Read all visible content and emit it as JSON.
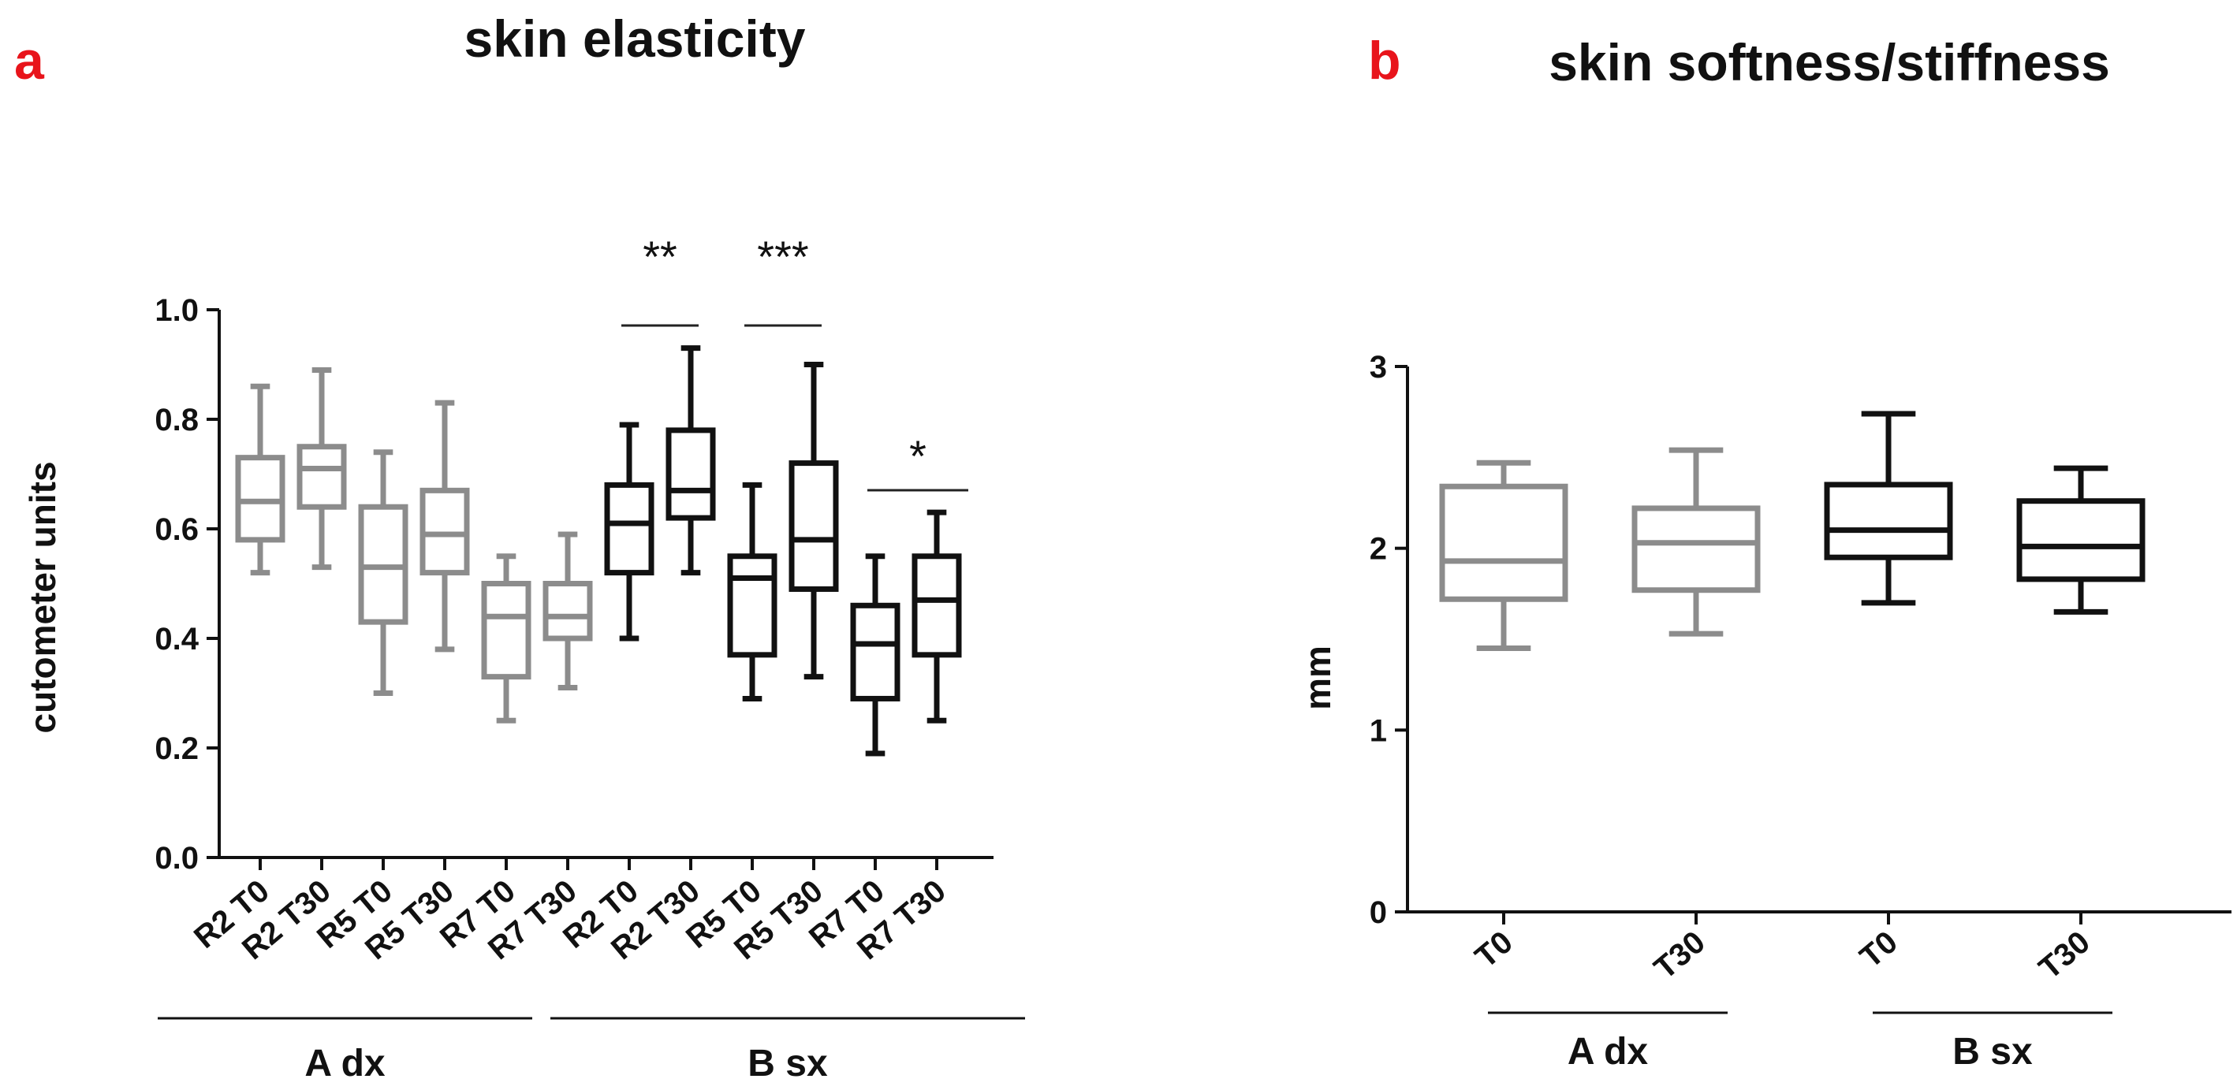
{
  "chart_data": [
    {
      "panel": "a",
      "type": "box",
      "title": "skin elasticity",
      "ylabel": "cutometer units",
      "ylim": [
        0.0,
        1.0
      ],
      "yticks": [
        "0.0",
        "0.2",
        "0.4",
        "0.6",
        "0.8",
        "1.0"
      ],
      "categories": [
        "R2 T0",
        "R2 T30",
        "R5 T0",
        "R5 T30",
        "R7 T0",
        "R7 T30",
        "R2 T0",
        "R2 T30",
        "R5 T0",
        "R5 T30",
        "R7 T0",
        "R7 T30"
      ],
      "groups": [
        {
          "label": "A dx",
          "from": 0,
          "to": 5,
          "color": "#8c8c8c"
        },
        {
          "label": "B sx",
          "from": 6,
          "to": 11,
          "color": "#111111"
        }
      ],
      "boxes": [
        {
          "min": 0.52,
          "q1": 0.58,
          "median": 0.65,
          "q3": 0.73,
          "max": 0.86
        },
        {
          "min": 0.53,
          "q1": 0.64,
          "median": 0.71,
          "q3": 0.75,
          "max": 0.89
        },
        {
          "min": 0.3,
          "q1": 0.43,
          "median": 0.53,
          "q3": 0.64,
          "max": 0.74
        },
        {
          "min": 0.38,
          "q1": 0.52,
          "median": 0.59,
          "q3": 0.67,
          "max": 0.83
        },
        {
          "min": 0.25,
          "q1": 0.33,
          "median": 0.44,
          "q3": 0.5,
          "max": 0.55
        },
        {
          "min": 0.31,
          "q1": 0.4,
          "median": 0.44,
          "q3": 0.5,
          "max": 0.59
        },
        {
          "min": 0.4,
          "q1": 0.52,
          "median": 0.61,
          "q3": 0.68,
          "max": 0.79
        },
        {
          "min": 0.52,
          "q1": 0.62,
          "median": 0.67,
          "q3": 0.78,
          "max": 0.93
        },
        {
          "min": 0.29,
          "q1": 0.37,
          "median": 0.51,
          "q3": 0.55,
          "max": 0.68
        },
        {
          "min": 0.33,
          "q1": 0.49,
          "median": 0.58,
          "q3": 0.72,
          "max": 0.9
        },
        {
          "min": 0.19,
          "q1": 0.29,
          "median": 0.39,
          "q3": 0.46,
          "max": 0.55
        },
        {
          "min": 0.25,
          "q1": 0.37,
          "median": 0.47,
          "q3": 0.55,
          "max": 0.63
        }
      ],
      "significance": [
        {
          "label": "**",
          "from": 6,
          "to": 7
        },
        {
          "label": "***",
          "from": 8,
          "to": 9
        },
        {
          "label": "*",
          "from": 10,
          "to": 11
        }
      ]
    },
    {
      "panel": "b",
      "type": "box",
      "title": "skin softness/stiffness",
      "ylabel": "mm",
      "ylim": [
        0,
        3
      ],
      "yticks": [
        "0",
        "1",
        "2",
        "3"
      ],
      "categories": [
        "T0",
        "T30",
        "T0",
        "T30"
      ],
      "groups": [
        {
          "label": "A dx",
          "from": 0,
          "to": 1,
          "color": "#8c8c8c"
        },
        {
          "label": "B sx",
          "from": 2,
          "to": 3,
          "color": "#111111"
        }
      ],
      "boxes": [
        {
          "min": 1.45,
          "q1": 1.72,
          "median": 1.93,
          "q3": 2.34,
          "max": 2.47
        },
        {
          "min": 1.53,
          "q1": 1.77,
          "median": 2.03,
          "q3": 2.22,
          "max": 2.54
        },
        {
          "min": 1.7,
          "q1": 1.95,
          "median": 2.1,
          "q3": 2.35,
          "max": 2.74
        },
        {
          "min": 1.65,
          "q1": 1.83,
          "median": 2.01,
          "q3": 2.26,
          "max": 2.44
        }
      ],
      "significance": []
    }
  ],
  "panels": {
    "a": {
      "letter": "a",
      "letter_color": "#e8141b"
    },
    "b": {
      "letter": "b",
      "letter_color": "#e8141b"
    }
  }
}
